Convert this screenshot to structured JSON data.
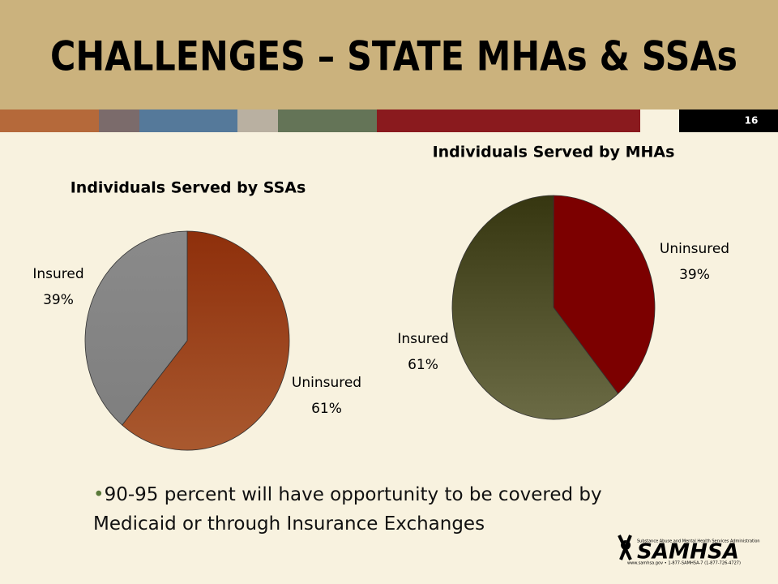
{
  "title": "CHALLENGES – STATE MHAs & SSAs",
  "slide_number": "16",
  "chart_data": [
    {
      "type": "pie",
      "title": "Individuals Served by SSAs",
      "categories": [
        "Uninsured",
        "Insured"
      ],
      "values": [
        61,
        39
      ],
      "value_labels": [
        "61%",
        "39%"
      ],
      "colors": [
        [
          "#8e2f0b",
          "#a9592f"
        ],
        [
          "#8a8a8a",
          "#7f7f7f"
        ]
      ]
    },
    {
      "type": "pie",
      "title": "Individuals Served by MHAs",
      "categories": [
        "Uninsured",
        "Insured"
      ],
      "values": [
        39,
        61
      ],
      "value_labels": [
        "39%",
        "61%"
      ],
      "colors": [
        [
          "#7c0000",
          "#7c0000"
        ],
        [
          "#363610",
          "#6b6b45"
        ]
      ]
    }
  ],
  "bullet": "90-95 percent will have opportunity to be covered by Medicaid or through Insurance Exchanges",
  "logo": {
    "name": "SAMHSA",
    "agency": "Substance Abuse and Mental Health Services Administration",
    "contact": "www.samhsa.gov • 1-877-SAMHSA-7 (1-877-726-4727)"
  }
}
